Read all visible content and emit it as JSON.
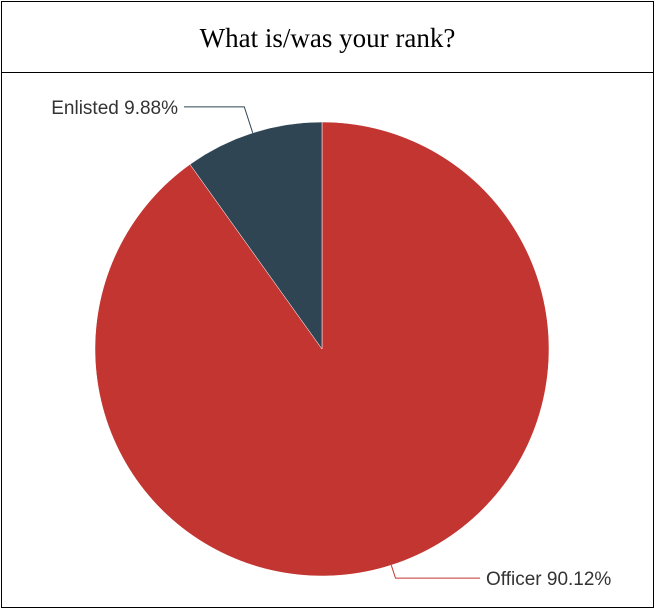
{
  "title": "What is/was your rank?",
  "colors": {
    "border": "#000000",
    "background": "#ffffff"
  },
  "chart_data": {
    "type": "pie",
    "title": "What is/was your rank?",
    "start_angle_deg": 90,
    "direction": "clockwise",
    "slices": [
      {
        "name": "Officer",
        "value": 90.12,
        "label": "Officer 90.12%",
        "color": "#c23531"
      },
      {
        "name": "Enlisted",
        "value": 9.88,
        "label": "Enlisted 9.88%",
        "color": "#2f4554"
      }
    ]
  }
}
